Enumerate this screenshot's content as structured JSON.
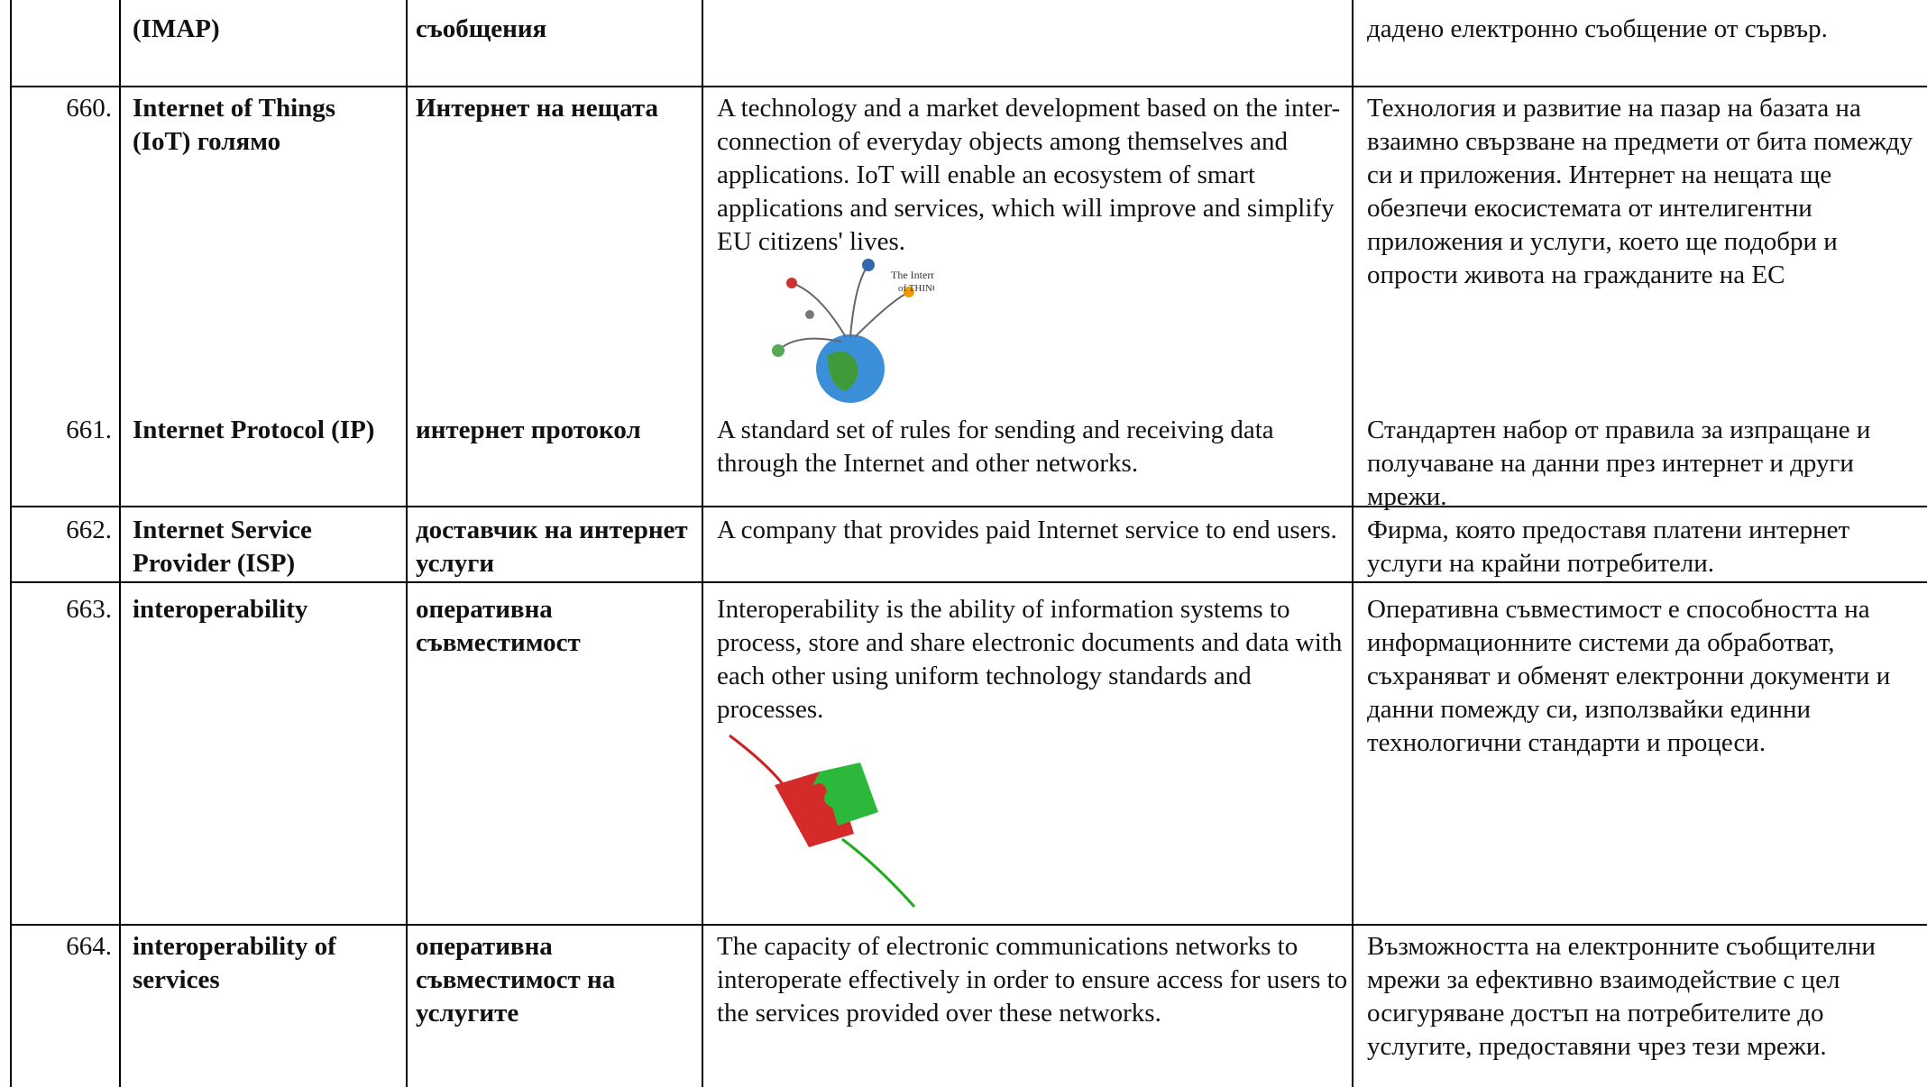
{
  "table": {
    "rows": [
      {
        "term": "(IMAP)",
        "bg_term": "съобщения",
        "bg_definition": "дадено електронно съобщение от сървър."
      },
      {
        "number": "660.",
        "term": "Internet of Things (IoT) голямо",
        "bg_term": "Интернет на нещата",
        "en_definition": "A technology and a market development based on the inter-connection of everyday objects among themselves and applications. IoT will enable an ecosystem of smart applications and services, which will improve and simplify EU citizens' lives.",
        "bg_definition": "Технология и развитие на пазар на базата на взаимно свързване на предмети от бита помежду си и приложения. Интернет на нещата ще обезпечи  екосистемата  от интелигентни приложения и услуги, което ще подобри и опрости живота на гражданите на ЕС"
      },
      {
        "number": "661.",
        "term": "Internet Protocol (IP)",
        "bg_term": "интернет протокол",
        "en_definition": "A standard set of rules for sending and receiving data through the Internet and other networks.",
        "bg_definition": "Стандартен набор от правила за изпращане и получаване на данни през интернет и други мрежи."
      },
      {
        "number": "662.",
        "term": "Internet Service Provider (ISP)",
        "bg_term": "доставчик на интернет услуги",
        "en_definition": "A company that provides paid Internet service to end users.",
        "bg_definition": "Фирма, която предоставя платени интернет услуги на крайни потребители."
      },
      {
        "number": "663.",
        "term": "interoperability",
        "bg_term": "оперативна съвместимост",
        "en_definition": "Interoperability is the ability of information systems to process, store and share electronic documents and data with each other using uniform technology standards and processes.",
        "bg_definition": "Оперативна съвместимост е способността на информационните системи да обработват, съхраняват и обменят електронни документи и данни помежду си, използвайки единни технологични стандарти и процеси."
      },
      {
        "number": "664.",
        "term": "interoperability of services",
        "bg_term": "оперативна съвместимост на услугите",
        "en_definition": "The capacity of electronic communications networks to interoperate effectively in order to ensure access for users to the services provided over these networks.",
        "bg_definition": "Възможността на електронните съобщителни мрежи за ефективно взаимодействие с цел осигуряване достъп на потребителите до услугите, предоставяни чрез тези мрежи."
      }
    ]
  }
}
